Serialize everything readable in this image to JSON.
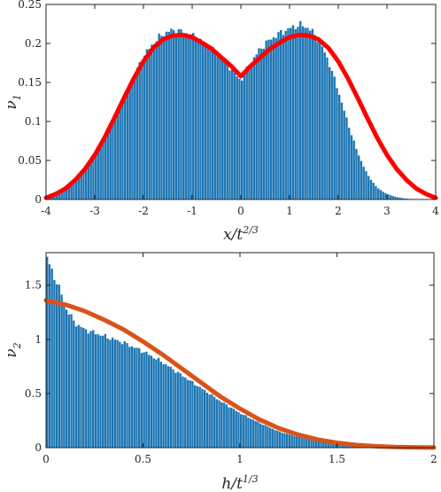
{
  "chart_data": [
    {
      "type": "bar",
      "subtype": "histogram-with-curve",
      "xlabel": {
        "base": "x/t",
        "sup": "2/3"
      },
      "ylabel": {
        "base": "ν",
        "sub": "1"
      },
      "xlim": [
        -4,
        4
      ],
      "ylim": [
        0,
        0.25
      ],
      "xticks": [
        "-4",
        "-3",
        "-2",
        "-1",
        "0",
        "1",
        "2",
        "3",
        "4"
      ],
      "yticks": [
        "0",
        "0.05",
        "0.1",
        "0.15",
        "0.2",
        "0.25"
      ],
      "grid": false,
      "histogram": {
        "color": "#1f77b4",
        "bin_width": 0.05,
        "profile_x": [
          -4.0,
          -3.8,
          -3.6,
          -3.4,
          -3.2,
          -3.0,
          -2.8,
          -2.6,
          -2.4,
          -2.2,
          -2.0,
          -1.8,
          -1.6,
          -1.4,
          -1.2,
          -1.0,
          -0.8,
          -0.6,
          -0.4,
          -0.2,
          -0.05,
          0.0,
          0.05,
          0.2,
          0.4,
          0.6,
          0.8,
          1.0,
          1.2,
          1.4,
          1.6,
          1.8,
          2.0,
          2.2,
          2.4,
          2.6,
          2.8,
          3.0,
          3.2,
          3.4,
          3.6,
          3.8,
          4.0
        ],
        "profile_y": [
          0.003,
          0.008,
          0.015,
          0.025,
          0.038,
          0.055,
          0.077,
          0.102,
          0.13,
          0.158,
          0.183,
          0.2,
          0.212,
          0.217,
          0.215,
          0.21,
          0.203,
          0.193,
          0.181,
          0.168,
          0.156,
          0.152,
          0.158,
          0.175,
          0.193,
          0.205,
          0.213,
          0.219,
          0.224,
          0.22,
          0.205,
          0.178,
          0.14,
          0.098,
          0.06,
          0.032,
          0.015,
          0.007,
          0.003,
          0.001,
          0.0,
          0.0,
          0.0
        ]
      },
      "curve": {
        "color": "#ff0000",
        "x": [
          -4.0,
          -3.8,
          -3.6,
          -3.4,
          -3.2,
          -3.0,
          -2.8,
          -2.6,
          -2.4,
          -2.2,
          -2.0,
          -1.8,
          -1.6,
          -1.4,
          -1.2,
          -1.0,
          -0.8,
          -0.6,
          -0.4,
          -0.2,
          0.0,
          0.2,
          0.4,
          0.6,
          0.8,
          1.0,
          1.2,
          1.4,
          1.6,
          1.8,
          2.0,
          2.2,
          2.4,
          2.6,
          2.8,
          3.0,
          3.2,
          3.4,
          3.6,
          3.8,
          4.0
        ],
        "y": [
          0.002,
          0.007,
          0.014,
          0.025,
          0.039,
          0.057,
          0.079,
          0.104,
          0.13,
          0.155,
          0.177,
          0.194,
          0.205,
          0.21,
          0.211,
          0.208,
          0.201,
          0.193,
          0.182,
          0.171,
          0.158,
          0.171,
          0.182,
          0.193,
          0.201,
          0.208,
          0.211,
          0.21,
          0.205,
          0.194,
          0.177,
          0.155,
          0.13,
          0.104,
          0.079,
          0.057,
          0.039,
          0.025,
          0.014,
          0.007,
          0.002
        ]
      }
    },
    {
      "type": "bar",
      "subtype": "histogram-with-curve",
      "xlabel": {
        "base": "h/t",
        "sup": "1/3"
      },
      "ylabel": {
        "base": "ν",
        "sub": "2"
      },
      "xlim": [
        0,
        2
      ],
      "ylim": [
        0,
        1.8
      ],
      "xticks": [
        "0",
        "0.5",
        "1",
        "1.5",
        "2"
      ],
      "yticks": [
        "0",
        "0.5",
        "1",
        "1.5"
      ],
      "grid": false,
      "histogram": {
        "color": "#1f77b4",
        "bin_width": 0.0125,
        "profile_x": [
          0.0,
          0.025,
          0.05,
          0.075,
          0.1,
          0.15,
          0.2,
          0.3,
          0.4,
          0.5,
          0.6,
          0.7,
          0.8,
          0.9,
          1.0,
          1.1,
          1.2,
          1.3,
          1.4,
          1.5,
          1.6,
          1.7,
          1.8,
          1.9,
          2.0
        ],
        "profile_y": [
          1.8,
          1.65,
          1.55,
          1.45,
          1.3,
          1.15,
          1.09,
          1.03,
          0.97,
          0.89,
          0.79,
          0.67,
          0.55,
          0.43,
          0.32,
          0.23,
          0.15,
          0.1,
          0.065,
          0.04,
          0.025,
          0.015,
          0.008,
          0.004,
          0.002
        ]
      },
      "curve": {
        "color": "#d95319",
        "x": [
          0.0,
          0.1,
          0.2,
          0.3,
          0.4,
          0.5,
          0.6,
          0.7,
          0.8,
          0.9,
          1.0,
          1.1,
          1.2,
          1.3,
          1.4,
          1.5,
          1.6,
          1.7,
          1.8,
          1.9,
          2.0
        ],
        "y": [
          1.36,
          1.32,
          1.26,
          1.18,
          1.09,
          0.98,
          0.86,
          0.73,
          0.6,
          0.47,
          0.36,
          0.26,
          0.18,
          0.12,
          0.075,
          0.045,
          0.025,
          0.013,
          0.006,
          0.003,
          0.001
        ]
      }
    }
  ]
}
